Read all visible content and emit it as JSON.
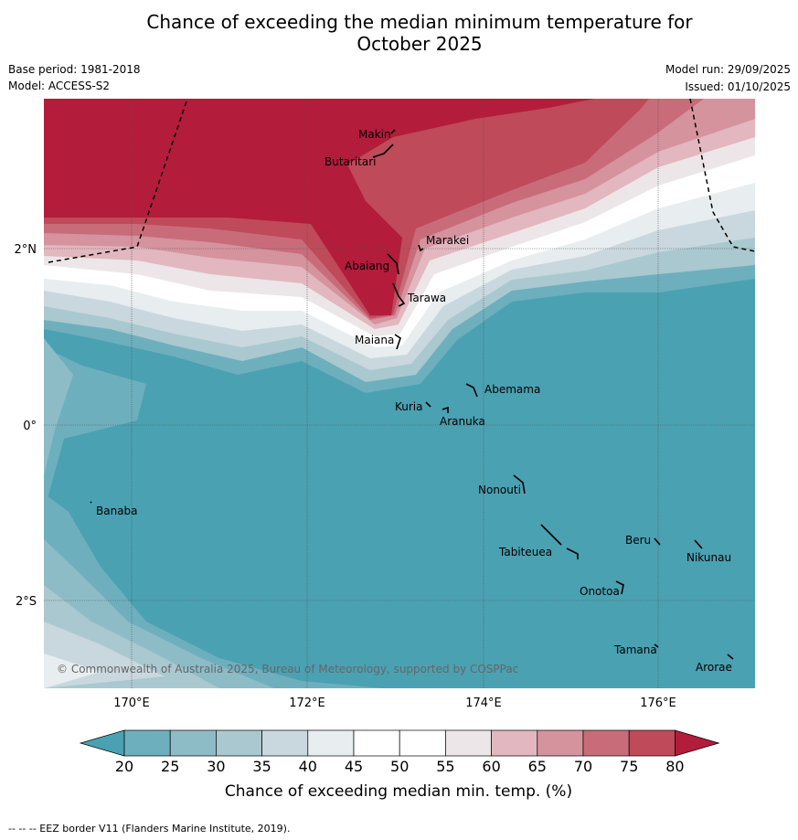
{
  "title_line1": "Chance of exceeding the median minimum temperature for",
  "title_line2": "October 2025",
  "meta": {
    "base_period": "Base period: 1981-2018",
    "model": "Model: ACCESS-S2",
    "model_run": "Model run: 29/09/2025",
    "issued": "Issued: 01/10/2025"
  },
  "map": {
    "lat_labels": [
      "2°N",
      "0°",
      "2°S"
    ],
    "lon_labels": [
      "170°E",
      "172°E",
      "174°E",
      "176°E"
    ],
    "places": [
      "Makin",
      "Butaritari",
      "Marakei",
      "Abaiang",
      "Tarawa",
      "Maiana",
      "Abemama",
      "Kuria",
      "Aranuka",
      "Nonouti",
      "Banaba",
      "Beru",
      "Nikunau",
      "Tabiteuea",
      "Onotoa",
      "Tamana",
      "Arorae"
    ],
    "copyright": "© Commonwealth of Australia 2025, Bureau of Meteorology, supported by COSPPac"
  },
  "legend": {
    "ticks": [
      "20",
      "25",
      "30",
      "35",
      "40",
      "45",
      "50",
      "55",
      "60",
      "65",
      "70",
      "75",
      "80"
    ],
    "label": "Chance of exceeding median min. temp. (%)",
    "colors": [
      "#4aa1b2",
      "#6eafbd",
      "#8dbcc7",
      "#aac8cf",
      "#c9d8de",
      "#e8edf0",
      "#ffffff",
      "#ffffff",
      "#ece6e8",
      "#e2b7bf",
      "#d5939e",
      "#c96c7a",
      "#bf4a5a",
      "#b31c3a"
    ]
  },
  "footnote": "--  --  -- EEZ border V11 (Flanders Marine Institute, 2019)."
}
